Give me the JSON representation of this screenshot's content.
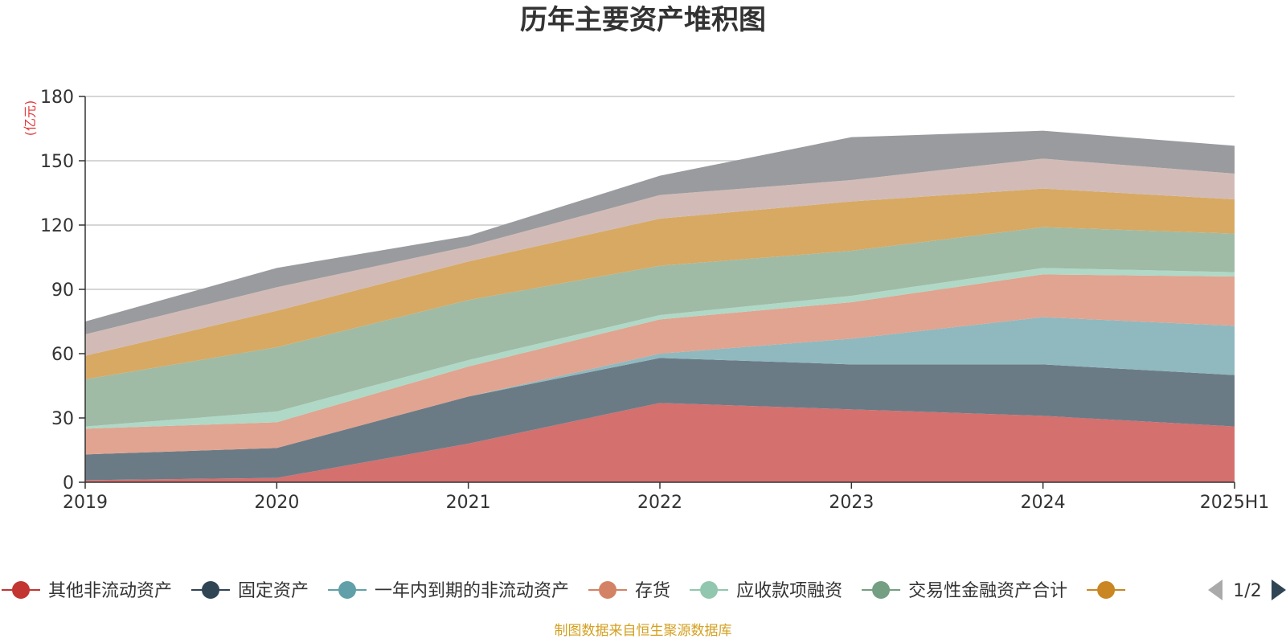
{
  "chart_data": {
    "type": "area",
    "stacked": true,
    "title": "历年主要资产堆积图",
    "unit_label": "(亿元)",
    "categories": [
      "2019",
      "2020",
      "2021",
      "2022",
      "2023",
      "2024",
      "2025H1"
    ],
    "ylim": [
      0,
      180
    ],
    "yticks": [
      0,
      30,
      60,
      90,
      120,
      150,
      180
    ],
    "grid": true,
    "series": [
      {
        "name": "其他非流动资产",
        "color": "#c23531",
        "fill": "#d4706e",
        "values": [
          1,
          2,
          18,
          37,
          34,
          31,
          26
        ]
      },
      {
        "name": "固定资产",
        "color": "#2f4554",
        "fill": "#6b7b86",
        "values": [
          12,
          14,
          22,
          21,
          21,
          24,
          24
        ]
      },
      {
        "name": "一年内到期的非流动资产",
        "color": "#61a0a8",
        "fill": "#8fb9bf",
        "values": [
          0,
          0,
          0,
          2,
          12,
          22,
          23
        ]
      },
      {
        "name": "存货",
        "color": "#d48265",
        "fill": "#e0a491",
        "values": [
          12,
          12,
          14,
          16,
          17,
          20,
          23
        ]
      },
      {
        "name": "应收款项融资",
        "color": "#91c7ae",
        "fill": "#b0d8c6",
        "values": [
          1,
          5,
          3,
          2,
          3,
          3,
          2
        ]
      },
      {
        "name": "交易性金融资产合计",
        "color": "#749f83",
        "fill": "#9fbba6",
        "values": [
          22,
          30,
          28,
          23,
          21,
          19,
          18
        ]
      },
      {
        "name": "",
        "color": "#ca8622",
        "fill": "#d7a963",
        "values": [
          11,
          17,
          18,
          22,
          23,
          18,
          16
        ]
      },
      {
        "name": "",
        "color": "#bda29a",
        "fill": "#d2bbb6",
        "values": [
          10,
          11,
          7,
          11,
          10,
          14,
          12
        ]
      },
      {
        "name": "",
        "color": "#6e7074",
        "fill": "#9a9b9f",
        "values": [
          6,
          9,
          5,
          9,
          20,
          13,
          13
        ]
      }
    ],
    "legend": {
      "placement": "bottom",
      "visible_items": [
        {
          "name": "其他非流动资产",
          "color": "#c23531"
        },
        {
          "name": "固定资产",
          "color": "#2f4554"
        },
        {
          "name": "一年内到期的非流动资产",
          "color": "#61a0a8"
        },
        {
          "name": "存货",
          "color": "#d48265"
        },
        {
          "name": "应收款项融资",
          "color": "#91c7ae"
        },
        {
          "name": "交易性金融资产合计",
          "color": "#749f83"
        },
        {
          "name": "",
          "color": "#ca8622"
        }
      ],
      "page": "1/2"
    },
    "source": "制图数据来自恒生聚源数据库"
  }
}
